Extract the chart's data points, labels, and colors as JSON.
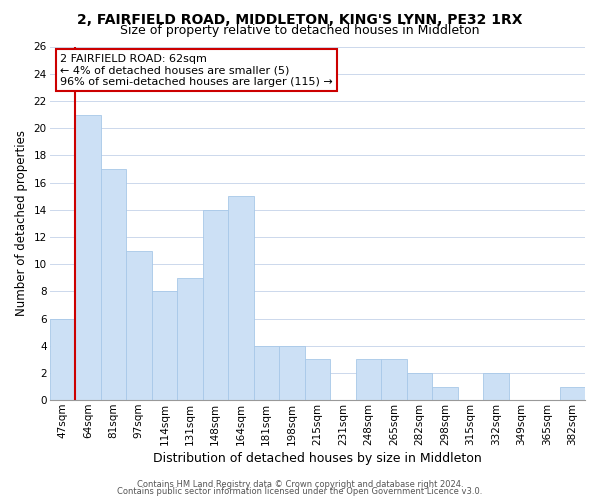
{
  "title1": "2, FAIRFIELD ROAD, MIDDLETON, KING'S LYNN, PE32 1RX",
  "title2": "Size of property relative to detached houses in Middleton",
  "xlabel": "Distribution of detached houses by size in Middleton",
  "ylabel": "Number of detached properties",
  "categories": [
    "47sqm",
    "64sqm",
    "81sqm",
    "97sqm",
    "114sqm",
    "131sqm",
    "148sqm",
    "164sqm",
    "181sqm",
    "198sqm",
    "215sqm",
    "231sqm",
    "248sqm",
    "265sqm",
    "282sqm",
    "298sqm",
    "315sqm",
    "332sqm",
    "349sqm",
    "365sqm",
    "382sqm"
  ],
  "values": [
    6,
    21,
    17,
    11,
    8,
    9,
    14,
    15,
    4,
    4,
    3,
    0,
    3,
    3,
    2,
    1,
    0,
    2,
    0,
    0,
    1
  ],
  "bar_color": "#cce0f5",
  "bar_edge_color": "#a8c8e8",
  "vline_color": "#cc0000",
  "vline_bar_index": 1,
  "ylim": [
    0,
    26
  ],
  "yticks": [
    0,
    2,
    4,
    6,
    8,
    10,
    12,
    14,
    16,
    18,
    20,
    22,
    24,
    26
  ],
  "annotation_title": "2 FAIRFIELD ROAD: 62sqm",
  "annotation_line1": "← 4% of detached houses are smaller (5)",
  "annotation_line2": "96% of semi-detached houses are larger (115) →",
  "annotation_box_color": "#ffffff",
  "annotation_box_edge": "#cc0000",
  "footer1": "Contains HM Land Registry data © Crown copyright and database right 2024.",
  "footer2": "Contains public sector information licensed under the Open Government Licence v3.0.",
  "bg_color": "#ffffff",
  "grid_color": "#ccd8ec",
  "title1_fontsize": 10,
  "title2_fontsize": 9,
  "xlabel_fontsize": 9,
  "ylabel_fontsize": 8.5,
  "tick_fontsize": 7.5,
  "ann_fontsize": 8,
  "footer_fontsize": 6
}
